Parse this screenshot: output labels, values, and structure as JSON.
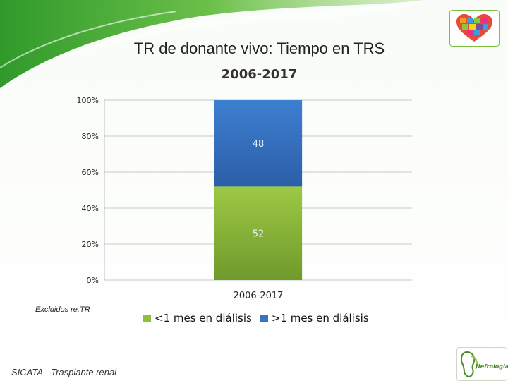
{
  "slide": {
    "title": "TR de donante vivo: Tiempo en TRS",
    "note": "Excluidos re.TR",
    "footer": "SICATA - Trasplante renal",
    "logo_text": "Nefrologia"
  },
  "colors": {
    "green_top": "#9dc843",
    "green_bottom": "#6f9a2c",
    "blue_top": "#3d7fd0",
    "blue_bottom": "#2c5ea8"
  },
  "chart_data": {
    "type": "bar",
    "stacked": true,
    "title": "2006-2017",
    "categories": [
      "2006-2017"
    ],
    "series": [
      {
        "name": "<1 mes en diálisis",
        "values": [
          52
        ],
        "color": "#8fbf3c"
      },
      {
        "name": ">1 mes en diálisis",
        "values": [
          48
        ],
        "color": "#3a75c4"
      }
    ],
    "y_ticks": [
      "0%",
      "20%",
      "40%",
      "60%",
      "80%",
      "100%"
    ],
    "ylim": [
      0,
      100
    ],
    "grid": true,
    "legend": "bottom"
  }
}
